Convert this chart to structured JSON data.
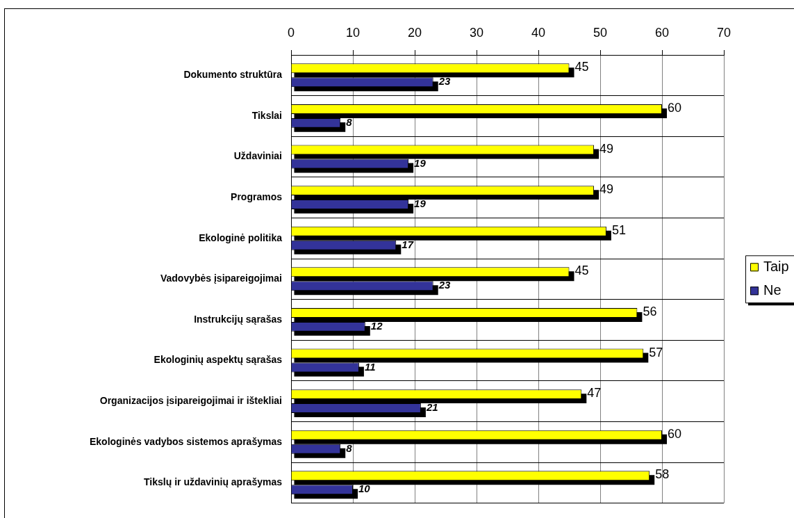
{
  "chart_data": {
    "type": "bar",
    "orientation": "horizontal",
    "categories": [
      "Dokumento struktūra",
      "Tikslai",
      "Uždaviniai",
      "Programos",
      "Ekologinė politika",
      "Vadovybės įsipareigojimai",
      "Instrukcijų sąrašas",
      "Ekologinių aspektų sąrašas",
      "Organizacijos įsipareigojimai ir ištekliai",
      "Ekologinės vadybos sistemos aprašymas",
      "Tikslų ir uždavinių aprašymas"
    ],
    "series": [
      {
        "name": "Taip",
        "color": "#ffff00",
        "values": [
          45,
          60,
          49,
          49,
          51,
          45,
          56,
          57,
          47,
          60,
          58
        ]
      },
      {
        "name": "Ne",
        "color": "#333399",
        "values": [
          23,
          8,
          19,
          19,
          17,
          23,
          12,
          11,
          21,
          8,
          10
        ]
      }
    ],
    "xlim": [
      0,
      70
    ],
    "xticks": [
      0,
      10,
      20,
      30,
      40,
      50,
      60,
      70
    ],
    "grid": true,
    "legend": "right",
    "data_labels": true
  }
}
